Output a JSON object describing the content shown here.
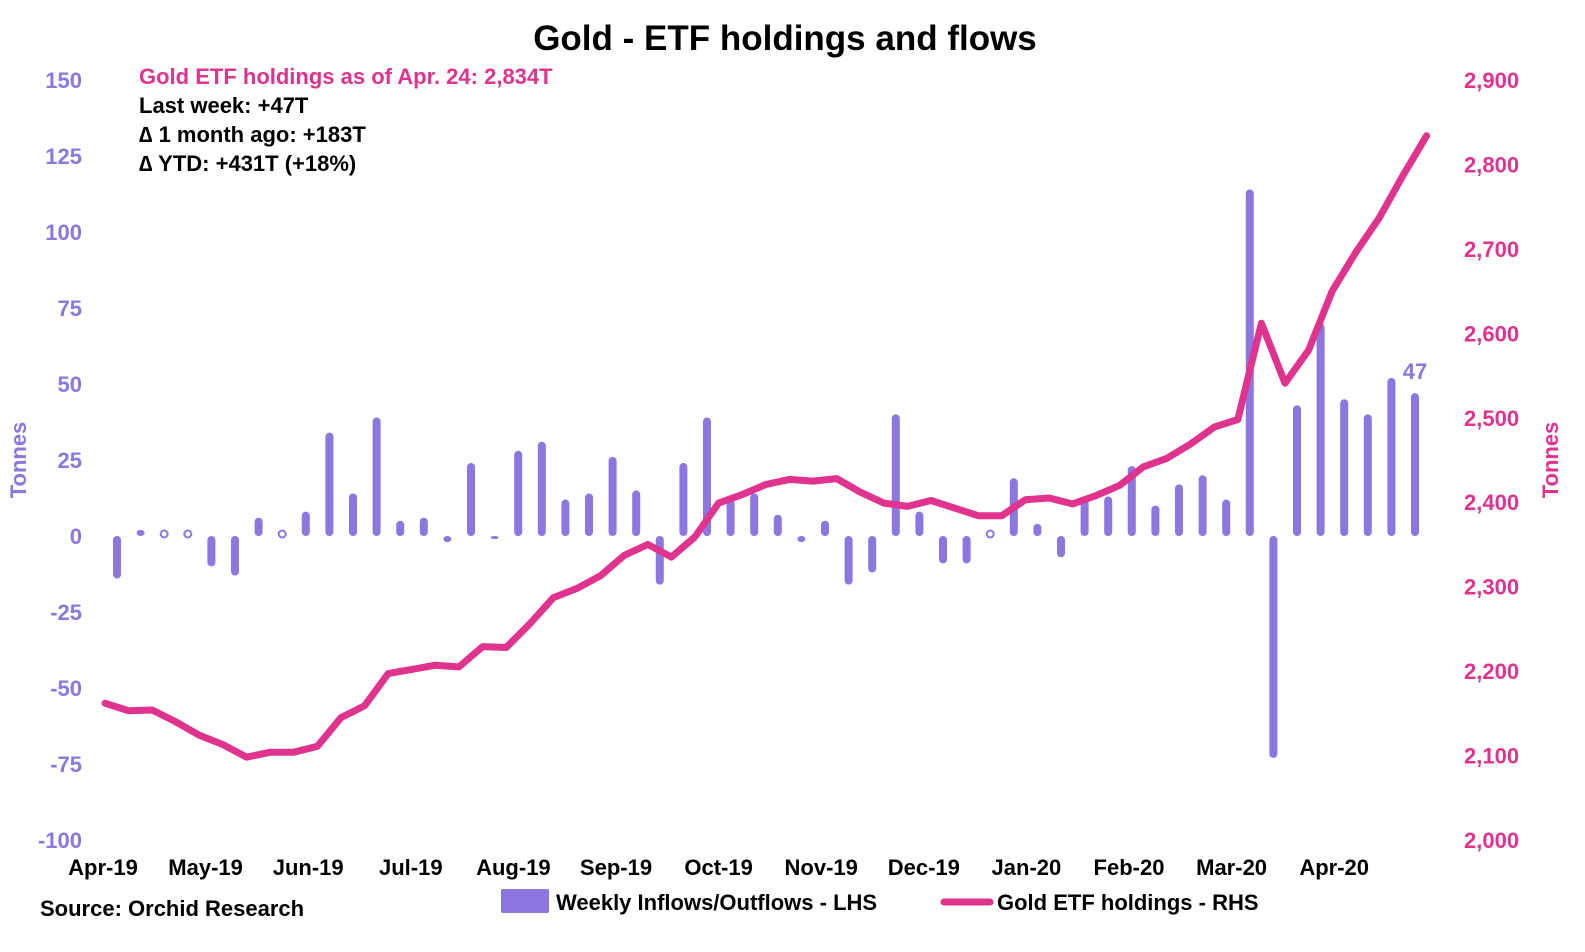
{
  "chart_data": {
    "type": "bar+line",
    "title": "Gold - ETF holdings and flows",
    "x_tick_labels": [
      "Apr-19",
      "May-19",
      "Jun-19",
      "Jul-19",
      "Aug-19",
      "Sep-19",
      "Oct-19",
      "Nov-19",
      "Dec-19",
      "Jan-20",
      "Feb-20",
      "Mar-20",
      "Apr-20"
    ],
    "left_axis": {
      "label": "Tonnes",
      "ylim": [
        -100,
        150
      ],
      "ticks": [
        150,
        125,
        100,
        75,
        50,
        25,
        0,
        -25,
        -50,
        -75,
        -100
      ],
      "color": "#8c76e0"
    },
    "right_axis": {
      "label": "Tonnes",
      "ylim": [
        2000,
        2900
      ],
      "ticks": [
        "2,900",
        "2,800",
        "2,700",
        "2,600",
        "2,500",
        "2,400",
        "2,300",
        "2,200",
        "2,100",
        "2,000"
      ],
      "tick_values": [
        2900,
        2800,
        2700,
        2600,
        2500,
        2400,
        2300,
        2200,
        2100,
        2000
      ],
      "color": "#e0338e"
    },
    "series": [
      {
        "name": "Weekly Inflows/Outflows - LHS",
        "type": "bar",
        "axis": "left",
        "color": "#8c76e0",
        "values": [
          -14,
          2,
          0,
          0,
          -10,
          -13,
          6,
          0,
          8,
          34,
          14,
          39,
          5,
          6,
          -2,
          24,
          -1,
          28,
          31,
          12,
          14,
          26,
          15,
          -16,
          24,
          39,
          12,
          14,
          7,
          -2,
          5,
          -16,
          -12,
          40,
          8,
          -9,
          -9,
          0,
          19,
          4,
          -7,
          13,
          13,
          23,
          10,
          17,
          20,
          12,
          114,
          -73,
          43,
          70,
          45,
          40,
          52,
          47
        ]
      },
      {
        "name": "Gold ETF holdings - RHS",
        "type": "line",
        "axis": "right",
        "color": "#e0338e",
        "values": [
          2162,
          2153,
          2154,
          2140,
          2124,
          2113,
          2098,
          2104,
          2104,
          2111,
          2145,
          2159,
          2197,
          2202,
          2207,
          2205,
          2229,
          2228,
          2256,
          2287,
          2298,
          2313,
          2337,
          2350,
          2335,
          2359,
          2399,
          2409,
          2421,
          2427,
          2425,
          2428,
          2412,
          2399,
          2395,
          2402,
          2393,
          2384,
          2384,
          2403,
          2405,
          2398,
          2408,
          2420,
          2442,
          2452,
          2469,
          2489,
          2498,
          2612,
          2541,
          2580,
          2650,
          2696,
          2737,
          2787,
          2834
        ]
      }
    ],
    "last_bar_label": "47",
    "annotations": [
      {
        "text": "Gold ETF holdings as of Apr. 24: 2,834T",
        "color": "#e0338e"
      },
      {
        "text": "Last week: +47T",
        "color": "#000000"
      },
      {
        "text": "∆ 1 month ago: +183T",
        "color": "#000000"
      },
      {
        "text": "∆ YTD: +431T (+18%)",
        "color": "#000000"
      }
    ],
    "legend": [
      "Weekly Inflows/Outflows - LHS",
      "Gold ETF holdings - RHS"
    ],
    "legend_position": "bottom",
    "grid": false
  },
  "source": "Source: Orchid Research"
}
